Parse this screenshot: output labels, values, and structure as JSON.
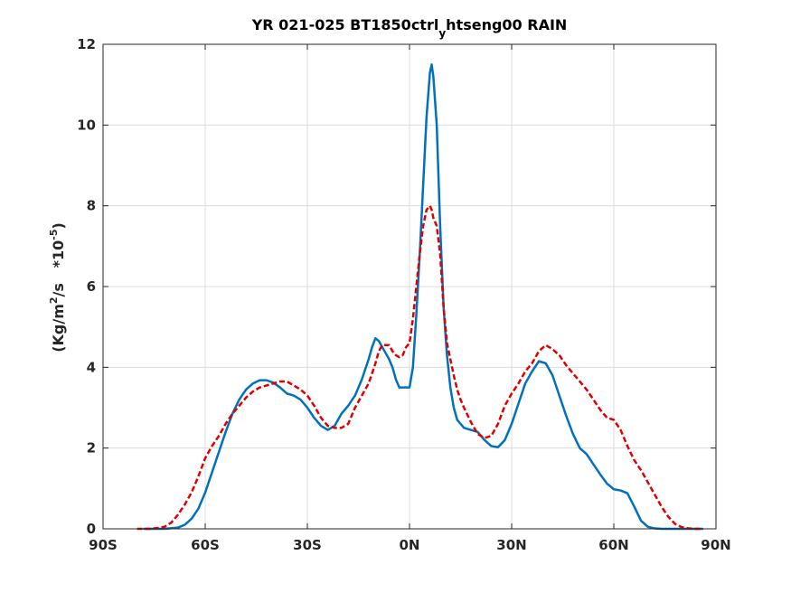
{
  "chart_data": {
    "type": "line",
    "title": {
      "main": "YR 021-025 BT1850ctrl",
      "sub": "y",
      "tail": "htseng00 RAIN"
    },
    "ylabel": {
      "a": "(Kg/m",
      "sup1": "2",
      "b": "/s   *10",
      "sup2": "-5",
      "c": ")"
    },
    "xlabel": "",
    "xlim": [
      -90,
      90
    ],
    "ylim": [
      0,
      12
    ],
    "xticks": [
      -90,
      -60,
      -30,
      0,
      30,
      60,
      90
    ],
    "xtick_labels": [
      "90S",
      "60S",
      "30S",
      "0N",
      "30N",
      "60N",
      "90N"
    ],
    "yticks": [
      0,
      2,
      4,
      6,
      8,
      10,
      12
    ],
    "ytick_labels": [
      "0",
      "2",
      "4",
      "6",
      "8",
      "10",
      "12"
    ],
    "grid": true,
    "series": [
      {
        "color": "#0072BD",
        "style": "solid",
        "x": [
          -78,
          -72,
          -68,
          -66,
          -64,
          -62,
          -60,
          -58,
          -56,
          -54,
          -52,
          -50,
          -48,
          -46,
          -44,
          -42,
          -40,
          -38,
          -36,
          -34,
          -32,
          -30,
          -28,
          -26,
          -24,
          -22,
          -20,
          -18,
          -16,
          -14,
          -12,
          -11,
          -10,
          -9,
          -8,
          -7,
          -6,
          -5,
          -4,
          -3,
          -2,
          -1,
          0,
          1,
          2,
          3,
          4,
          5,
          6,
          6.5,
          7,
          8,
          9,
          10,
          11,
          12,
          13,
          14,
          15,
          16,
          18,
          20,
          22,
          24,
          26,
          28,
          30,
          32,
          34,
          36,
          38,
          40,
          42,
          44,
          46,
          48,
          50,
          52,
          54,
          56,
          58,
          60,
          62,
          64,
          66,
          68,
          70,
          72,
          74,
          76,
          78,
          80,
          82,
          84,
          86
        ],
        "y": [
          0,
          0,
          0.03,
          0.1,
          0.25,
          0.5,
          0.9,
          1.4,
          1.9,
          2.4,
          2.85,
          3.2,
          3.45,
          3.6,
          3.68,
          3.68,
          3.62,
          3.5,
          3.35,
          3.3,
          3.2,
          3.0,
          2.75,
          2.55,
          2.45,
          2.55,
          2.85,
          3.05,
          3.3,
          3.7,
          4.2,
          4.5,
          4.72,
          4.65,
          4.5,
          4.35,
          4.2,
          4.0,
          3.7,
          3.5,
          3.5,
          3.5,
          3.5,
          4.0,
          5.3,
          6.8,
          8.5,
          10.2,
          11.3,
          11.5,
          11.2,
          10.0,
          7.5,
          5.5,
          4.3,
          3.5,
          3.0,
          2.7,
          2.6,
          2.5,
          2.45,
          2.4,
          2.2,
          2.05,
          2.02,
          2.2,
          2.6,
          3.1,
          3.6,
          3.9,
          4.15,
          4.1,
          3.8,
          3.3,
          2.8,
          2.35,
          2.0,
          1.85,
          1.6,
          1.35,
          1.12,
          0.98,
          0.95,
          0.88,
          0.55,
          0.2,
          0.05,
          0.01,
          0,
          0,
          0,
          0,
          0,
          0,
          0
        ]
      },
      {
        "color": "#E00000",
        "style": "dashed",
        "x": [
          -80,
          -76,
          -74,
          -72,
          -70,
          -68,
          -66,
          -64,
          -62,
          -60,
          -58,
          -56,
          -54,
          -52,
          -50,
          -48,
          -46,
          -44,
          -42,
          -40,
          -38,
          -36,
          -34,
          -32,
          -30,
          -28,
          -26,
          -24,
          -22,
          -20,
          -18,
          -16,
          -14,
          -12,
          -10,
          -9,
          -8,
          -7,
          -6,
          -5,
          -4,
          -3,
          -2,
          -1,
          0,
          1,
          2,
          3,
          4,
          5,
          6,
          6.5,
          7,
          8,
          9,
          10,
          11,
          12,
          13,
          14,
          15,
          16,
          18,
          20,
          22,
          24,
          26,
          28,
          30,
          32,
          34,
          36,
          38,
          40,
          42,
          44,
          46,
          48,
          50,
          52,
          54,
          56,
          58,
          60,
          62,
          64,
          66,
          68,
          70,
          72,
          74,
          76,
          78,
          80,
          82,
          84,
          86
        ],
        "y": [
          0,
          0,
          0.02,
          0.05,
          0.15,
          0.35,
          0.6,
          0.9,
          1.3,
          1.75,
          2.05,
          2.3,
          2.6,
          2.85,
          3.05,
          3.25,
          3.4,
          3.5,
          3.55,
          3.6,
          3.65,
          3.65,
          3.55,
          3.45,
          3.3,
          3.05,
          2.75,
          2.55,
          2.5,
          2.5,
          2.6,
          3.0,
          3.3,
          3.6,
          4.1,
          4.4,
          4.55,
          4.55,
          4.55,
          4.4,
          4.3,
          4.25,
          4.3,
          4.5,
          4.6,
          5.2,
          6.0,
          6.8,
          7.5,
          7.9,
          8.0,
          7.9,
          7.7,
          7.5,
          6.8,
          5.5,
          4.6,
          4.2,
          3.8,
          3.45,
          3.2,
          3.0,
          2.65,
          2.35,
          2.25,
          2.3,
          2.6,
          3.05,
          3.35,
          3.6,
          3.9,
          4.1,
          4.4,
          4.55,
          4.45,
          4.3,
          4.05,
          3.85,
          3.65,
          3.45,
          3.2,
          2.95,
          2.75,
          2.7,
          2.45,
          2.05,
          1.7,
          1.45,
          1.15,
          0.85,
          0.55,
          0.3,
          0.12,
          0.04,
          0.01,
          0,
          0
        ]
      }
    ]
  }
}
